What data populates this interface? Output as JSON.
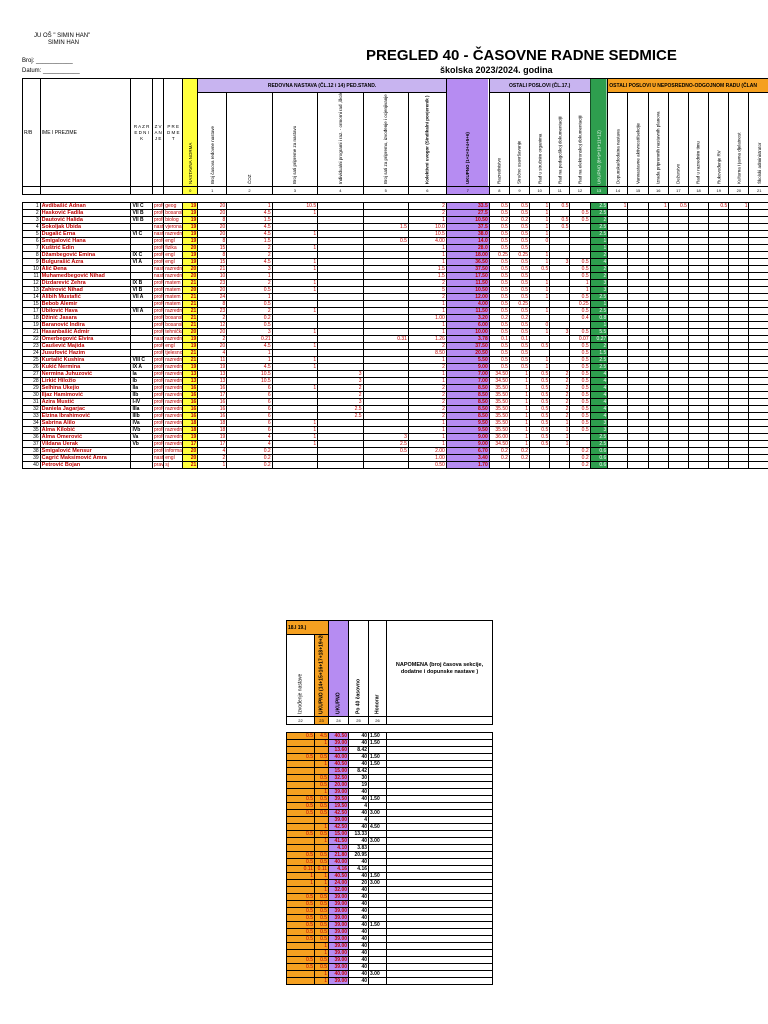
{
  "header": {
    "school_line1": "JU OŠ \" SIMIN HAN\"",
    "school_line2": "SIMIN HAN",
    "broj_label": "Broj: ___________",
    "datum_label": "Datum: ___________",
    "title": "PREGLED 40 - ČASOVNE RADNE SEDMICE",
    "subtitle": "školska 2023/2024. godina"
  },
  "table": {
    "h_rb": "R/B",
    "h_name": "IME I PREZIME",
    "h_razred": "R A Z R E D N I K",
    "h_zvanje": "Z V A N J E",
    "h_predmet": "P R E D M E T",
    "h_norma": "NASTAVNA NORMA",
    "h_redovna": "REDOVNA NASTAVA (ČL.12 i 14) PED.STAND.",
    "h_ostali": "OSTALI POSLOVI (ČL.17.)",
    "h_ostali_neposr": "OSTALI POSLOVI U NEPOSREDNO-ODGOJNOM RADU (ČLAN",
    "h_c1": "Broj časova redovne nastave",
    "h_c2": "ČOZ",
    "h_c3": "Broj sati pripreme za nastavu",
    "h_c4": "Individualni programi i raz. - ormorni rad ,škole",
    "h_c5": "Broj sati za pripremu, izvođenje i ocjenjivanje praktičnih radova",
    "h_c6": "Kolektivni uvogor (Sindikalni povjerenik )",
    "h_c7": "UKUPNO (1+2+3+4+5+6)",
    "h_c8": "Razrednistvo",
    "h_c9": "Stručno usavršavanje",
    "h_c10": "Rad u stručnim organima",
    "h_c11": "Rad na pedagoškoj dokumentaciji",
    "h_c12": "Rad na elektronskoj dokumentaciji",
    "h_c13": "UKUPNO (8+9+10+11+12)",
    "h_c14": "Dopunska/dodatna nastava",
    "h_c15": "Vannastavne aktivnosti/sekcije",
    "h_c16": "Izrada pripremnih nastavnih planova",
    "h_c17": "Dežurstvo",
    "h_c18": "Rad u razrednim timu",
    "h_c19": "Rukovođenje RV",
    "h_c20": "Kulturna i javna djelatnost",
    "h_c21": "Školski administrator",
    "colnums": [
      "0",
      "1",
      "2",
      "3",
      "4",
      "5",
      "6",
      "7",
      "8",
      "9",
      "10",
      "11",
      "12",
      "13",
      "14",
      "15",
      "16",
      "17",
      "18",
      "19",
      "20",
      "21"
    ],
    "rows": [
      {
        "rb": "1",
        "name": "Avdibašić Adnan",
        "raz": "VII C",
        "zv": "profe",
        "pr": "geog",
        "norm": "19",
        "c1": "20",
        "c2": "1",
        "c3": "10.5",
        "c6": "2",
        "c7": "33.5",
        "c8": "0.5",
        "c9": "0.5",
        "c10": "1",
        "c11": "0.5",
        "c13": "2.5",
        "c14": "1",
        "c16": "1",
        "c17": "0.5",
        "c19": "0.5",
        "c20": "1"
      },
      {
        "rb": "2",
        "name": "Hasković Fadila",
        "raz": "VII B",
        "zv": "profe",
        "pr": "bosanski",
        "norm": "19",
        "c1": "20",
        "c2": "4.5",
        "c3": "1",
        "c6": "2",
        "c7": "27.5",
        "c8": "0.5",
        "c9": "0.5",
        "c10": "1",
        "c12": "0.5",
        "c13": "2.5"
      },
      {
        "rb": "3",
        "name": "Dautović Halida",
        "raz": "VII B",
        "zv": "profe",
        "pr": "biolog",
        "norm": "19",
        "c1": "8",
        "c2": "1.5",
        "c6": "1",
        "c7": "10.50",
        "c8": "0.2",
        "c9": "0.2",
        "c10": "1",
        "c11": "0.5",
        "c12": "0.5",
        "c13": "2"
      },
      {
        "rb": "4",
        "name": "Sokoljak Ubida",
        "zv": "nasta",
        "pr": "vjerona",
        "norm": "19",
        "c1": "20",
        "c2": "4.5",
        "c5": "1.5",
        "c6": "10.0",
        "c7": "37.5",
        "c8": "0.5",
        "c9": "0.5",
        "c10": "1",
        "c11": "0.5",
        "c13": "2.5"
      },
      {
        "rb": "5",
        "name": "Dugalić Erna",
        "raz": "VI C",
        "zv": "nasta",
        "pr": "razredna",
        "norm": "19",
        "c1": "20",
        "c2": "4.5",
        "c3": "1",
        "c6": "10.5",
        "c7": "38.0",
        "c8": "0.5",
        "c9": "0.5",
        "c10": "1",
        "c13": "2.5"
      },
      {
        "rb": "6",
        "name": "Šmigalović Hana",
        "zv": "profe",
        "pr": "engl",
        "norm": "19",
        "c1": "8",
        "c2": "1.5",
        "c5": "0.5",
        "c6": "4.00",
        "c7": "14.0",
        "c8": "0.5",
        "c9": "0.5",
        "c10": "0",
        "c13": "1"
      },
      {
        "rb": "7",
        "name": "Kuštrić Edin",
        "zv": "profe",
        "pr": "fizika",
        "norm": "20",
        "c1": "15",
        "c2": "2",
        "c3": "1",
        "c6": "1",
        "c7": "28.0",
        "c8": "0.5",
        "c9": "0.5",
        "c13": "1"
      },
      {
        "rb": "8",
        "name": "Džambegović Emina",
        "raz": "IX C",
        "zv": "profe",
        "pr": "engl",
        "norm": "19",
        "c1": "8",
        "c2": "2",
        "c6": "1",
        "c7": "18.00",
        "c8": "0.25",
        "c9": "0.25",
        "c10": "1",
        "c13": "2"
      },
      {
        "rb": "9",
        "name": "Bulgurašić Azra",
        "raz": "VI A",
        "zv": "profe",
        "pr": "engl",
        "norm": "19",
        "c1": "15",
        "c2": "4.5",
        "c3": "1",
        "c6": "1",
        "c7": "36.50",
        "c8": "0.5",
        "c9": "0.5",
        "c10": "1",
        "c11": "3",
        "c12": "0.5",
        "c13": "4"
      },
      {
        "rb": "10",
        "name": "Alić Đena",
        "zv": "nasta",
        "pr": "razredna",
        "norm": "20",
        "c1": "21",
        "c2": "3",
        "c3": "1",
        "c6": "1.5",
        "c7": "37.50",
        "c8": "0.5",
        "c9": "0.5",
        "c10": "0.5",
        "c12": "0.5",
        "c13": "2"
      },
      {
        "rb": "11",
        "name": "Muhamedbegović Nihad",
        "zv": "nasta",
        "pr": "razredna",
        "norm": "20",
        "c1": "10",
        "c2": "1",
        "c6": "1.5",
        "c7": "17.50",
        "c8": "0.5",
        "c9": "0.5",
        "c12": "0.5",
        "c13": "2"
      },
      {
        "rb": "12",
        "name": "Dizdarević Zehra",
        "raz": "IX B",
        "zv": "profe",
        "pr": "matem",
        "norm": "21",
        "c1": "23",
        "c2": "2",
        "c3": "1",
        "c6": "2",
        "c7": "11.50",
        "c8": "0.5",
        "c9": "0.5",
        "c10": "1",
        "c12": "1",
        "c13": "3"
      },
      {
        "rb": "13",
        "name": "Zahirović Nihad",
        "raz": "VI B",
        "zv": "profe",
        "pr": "matem",
        "norm": "20",
        "c1": "20",
        "c2": "0.5",
        "c3": "1",
        "c6": "5",
        "c7": "10.50",
        "c8": "0.5",
        "c9": "0.5",
        "c10": "1",
        "c12": "1",
        "c13": "3"
      },
      {
        "rb": "14",
        "name": "Alibih Mustafić",
        "raz": "VII A",
        "zv": "profe",
        "pr": "matem",
        "norm": "21",
        "c1": "24",
        "c2": "1",
        "c6": "2",
        "c7": "12.00",
        "c8": "0.5",
        "c9": "0.5",
        "c10": "1",
        "c12": "0.5",
        "c13": "2.5"
      },
      {
        "rb": "15",
        "name": "Bebob Alemir",
        "zv": "profe",
        "pr": "matem",
        "norm": "21",
        "c1": "8",
        "c2": "0.5",
        "c6": "1",
        "c7": "4.00",
        "c8": "0.5",
        "c9": "0.25",
        "c12": "0.25",
        "c13": "1"
      },
      {
        "rb": "17",
        "name": "Ubilović Hava",
        "raz": "VII A",
        "zv": "profe",
        "pr": "razredna",
        "norm": "21",
        "c1": "23",
        "c2": "2",
        "c3": "1",
        "c6": "1",
        "c7": "11.50",
        "c8": "0.5",
        "c9": "0.5",
        "c10": "1",
        "c12": "0.5",
        "c13": "2.5"
      },
      {
        "rb": "18",
        "name": "Džinić Jasara",
        "zv": "profe",
        "pr": "bosanski",
        "norm": "21",
        "c1": "2",
        "c2": "0.2",
        "c6": "1.00",
        "c7": "3.20",
        "c8": "0.2",
        "c9": "0.2",
        "c12": "0.4",
        "c13": "0.8"
      },
      {
        "rb": "19",
        "name": "Baranović Indira",
        "zv": "profe",
        "pr": "bosanski",
        "norm": "21",
        "c1": "12",
        "c2": "0.5",
        "c6": "1",
        "c7": "6.00",
        "c8": "0.5",
        "c9": "0.5",
        "c10": "0",
        "c13": "1"
      },
      {
        "rb": "21",
        "name": "Hasanbašić Admir",
        "zv": "profe",
        "pr": "tehnička",
        "norm": "20",
        "c1": "20",
        "c2": "3",
        "c3": "1",
        "c6": "1",
        "c7": "10.00",
        "c8": "0.5",
        "c9": "0.5",
        "c10": "1",
        "c11": "3",
        "c12": "0.5",
        "c13": "5.5"
      },
      {
        "rb": "22",
        "name": "Omerbegović Elvira",
        "zv": "nasta",
        "pr": "razredna",
        "norm": "19",
        "c1": "2",
        "c2": "0.21",
        "c5": "0.31",
        "c6": "1.26",
        "c7": "3.78",
        "c8": "0.1",
        "c9": "0.1",
        "c12": "0.07",
        "c13": "0.27"
      },
      {
        "rb": "23",
        "name": "Čaušević Majida",
        "zv": "profe",
        "pr": "engl",
        "norm": "19",
        "c1": "20",
        "c2": "4.5",
        "c3": "1",
        "c6": "2",
        "c7": "37.50",
        "c8": "0.5",
        "c9": "0.5",
        "c10": "0.5",
        "c12": "0.5",
        "c13": "2"
      },
      {
        "rb": "24",
        "name": "Jusufović Hazim",
        "zv": "profe",
        "pr": "tjelesno",
        "norm": "21",
        "c1": "4",
        "c2": "1",
        "c6": "8.50",
        "c7": "20.50",
        "c8": "0.5",
        "c9": "0.5",
        "c12": "0.5",
        "c13": "1.5"
      },
      {
        "rb": "25",
        "name": "Kurtalić Kushira",
        "raz": "VIII C",
        "zv": "profe",
        "pr": "razredna",
        "norm": "21",
        "c1": "11",
        "c2": "1",
        "c3": "1",
        "c6": "1",
        "c7": "5.50",
        "c8": "0.5",
        "c9": "0.5",
        "c10": "1",
        "c12": "0.5",
        "c13": "2.5"
      },
      {
        "rb": "26",
        "name": "Kukić Nermina",
        "raz": "IX A",
        "zv": "profe",
        "pr": "razredna",
        "norm": "19",
        "c1": "19",
        "c2": "4.5",
        "c3": "1",
        "c6": "2",
        "c7": "9.00",
        "c8": "0.5",
        "c9": "0.5",
        "c10": "1",
        "c12": "0.5",
        "c13": "2.5"
      },
      {
        "rb": "27",
        "name": "Nermina Juhuzović",
        "raz": "Ia",
        "zv": "profe",
        "pr": "razredna",
        "norm": "13",
        "c1": "13",
        "c2": "10.5",
        "c4": "3",
        "c6": "1",
        "c7": "7.00",
        "c8": "34.50",
        "c9": "1",
        "c10": "0.5",
        "c11": "2",
        "c12": "0.5",
        "c13": "4"
      },
      {
        "rb": "28",
        "name": "Lirkić Hiložio",
        "raz": "Ib",
        "zv": "profe",
        "pr": "razredna",
        "norm": "13",
        "c1": "13",
        "c2": "10.5",
        "c4": "3",
        "c6": "1",
        "c7": "7.00",
        "c8": "34.50",
        "c9": "1",
        "c10": "0.5",
        "c11": "2",
        "c12": "0.5",
        "c13": "4"
      },
      {
        "rb": "29",
        "name": "Selhina Ukejio",
        "raz": "IIa",
        "zv": "profe",
        "pr": "razredna",
        "norm": "16",
        "c1": "16",
        "c2": "6",
        "c3": "1",
        "c4": "2",
        "c6": "2",
        "c7": "8.50",
        "c8": "35.50",
        "c9": "1",
        "c10": "0.5",
        "c11": "2",
        "c12": "0.5",
        "c13": "4"
      },
      {
        "rb": "30",
        "name": "Iljaz Hamimović",
        "raz": "IIb",
        "zv": "profe",
        "pr": "razredna",
        "norm": "16",
        "c1": "17",
        "c2": "6",
        "c4": "2",
        "c6": "2",
        "c7": "8.50",
        "c8": "35.50",
        "c9": "1",
        "c10": "0.5",
        "c11": "2",
        "c12": "0.5",
        "c13": "4"
      },
      {
        "rb": "31",
        "name": "Azira Mustić",
        "raz": "I-IV",
        "zv": "profe",
        "pr": "razredna",
        "norm": "16",
        "c1": "16",
        "c2": "6",
        "c4": "3",
        "c6": "2",
        "c7": "8.50",
        "c8": "35.50",
        "c9": "1",
        "c10": "0.5",
        "c11": "2",
        "c12": "0.5",
        "c13": "4"
      },
      {
        "rb": "32",
        "name": "Daniela Jagarjac",
        "raz": "IIIa",
        "zv": "profe",
        "pr": "razredna",
        "norm": "16",
        "c1": "16",
        "c2": "6",
        "c4": "2.5",
        "c6": "2",
        "c7": "8.50",
        "c8": "35.50",
        "c9": "1",
        "c10": "0.5",
        "c11": "2",
        "c12": "0.5",
        "c13": "4"
      },
      {
        "rb": "33",
        "name": "Elzina Ibrahimović",
        "raz": "IIIb",
        "zv": "profe",
        "pr": "razredna",
        "norm": "16",
        "c1": "16",
        "c2": "6",
        "c4": "2.5",
        "c6": "2",
        "c7": "8.50",
        "c8": "35.50",
        "c9": "1",
        "c10": "0.5",
        "c11": "2",
        "c12": "0.5",
        "c13": "4"
      },
      {
        "rb": "34",
        "name": "Sabrina Alilo",
        "raz": "IVa",
        "zv": "profe",
        "pr": "razredna",
        "norm": "18",
        "c1": "18",
        "c2": "6",
        "c3": "1",
        "c6": "1",
        "c7": "9.50",
        "c8": "35.50",
        "c9": "1",
        "c10": "0.5",
        "c11": "1",
        "c12": "0.5",
        "c13": "3"
      },
      {
        "rb": "35",
        "name": "Alma Kilobić",
        "raz": "IVb",
        "zv": "profe",
        "pr": "razredna",
        "norm": "18",
        "c1": "18",
        "c2": "6",
        "c3": "1",
        "c6": "1",
        "c7": "9.50",
        "c8": "35.50",
        "c9": "1",
        "c10": "0.5",
        "c11": "1",
        "c12": "0.5",
        "c13": "3"
      },
      {
        "rb": "36",
        "name": "Alma Omerović",
        "raz": "Va",
        "zv": "profe",
        "pr": "razredna",
        "norm": "19",
        "c1": "19",
        "c2": "4",
        "c3": "1",
        "c5": "3",
        "c6": "1",
        "c7": "9.00",
        "c8": "36.00",
        "c9": "1",
        "c10": "0.5",
        "c11": "1",
        "c13": "2.5"
      },
      {
        "rb": "37",
        "name": "Vildana Uerak",
        "raz": "Vb",
        "zv": "profe",
        "pr": "razredna",
        "norm": "17",
        "c1": "17",
        "c2": "4",
        "c3": "1",
        "c5": "2.5",
        "c6": "1",
        "c7": "9.00",
        "c8": "34.50",
        "c9": "1",
        "c10": "0.5",
        "c11": "1",
        "c13": "2.5"
      },
      {
        "rb": "38",
        "name": "Šmigalović Mensur",
        "zv": "profe",
        "pr": "informat",
        "norm": "20",
        "c1": "4",
        "c2": "0.2",
        "c5": "0.5",
        "c6": "2.00",
        "c7": "6.70",
        "c8": "0.2",
        "c9": "0.2",
        "c12": "0.2",
        "c13": "0.6"
      },
      {
        "rb": "39",
        "name": "Čagrić Maksimović Amra",
        "zv": "nasta",
        "pr": "engl",
        "norm": "20",
        "c1": "2",
        "c2": "0.2",
        "c6": "1.00",
        "c7": "3.40",
        "c8": "0.2",
        "c9": "0.2",
        "c12": "0.2",
        "c13": "0.6"
      },
      {
        "rb": "40",
        "name": "Petrović Bojan",
        "zv": "prav.",
        "pr": "sj",
        "norm": "21",
        "c1": "1",
        "c2": "0.2",
        "c6": "0.50",
        "c7": "1.70",
        "c12": "0.2",
        "c13": "0.6"
      }
    ]
  },
  "second": {
    "h_1819": "18.I 19.)",
    "h_c22": "Izvođenje nastave",
    "h_c23": "UKUPNO (14+15+16+17+18+19+20+21+22)",
    "h_c24": "UKUPNO",
    "h_c25": "Po 40 časovno",
    "h_c26": "Honorar",
    "h_napomena": "NAPOMENA (broj časova sekcije, dodatne i dopunske nastave )",
    "colnums": [
      "22",
      "23",
      "24",
      "25",
      "26"
    ],
    "rows": [
      {
        "a": "0.5",
        "b": "4.5",
        "c": "40.50",
        "d": "40",
        "e": "1.50"
      },
      {
        "a": "",
        "b": "1",
        "c": "39.00",
        "d": "40",
        "e": "1.50"
      },
      {
        "a": "",
        "b": "",
        "c": "13.60",
        "d": "8.42",
        "e": ""
      },
      {
        "a": "0.5",
        "b": "0.5",
        "c": "40.00",
        "d": "40",
        "e": "1.50"
      },
      {
        "a": "",
        "b": "1",
        "c": "40.50",
        "d": "40",
        "e": "1.50"
      },
      {
        "a": "",
        "b": "",
        "c": "15.00",
        "d": "8.42",
        "e": ""
      },
      {
        "a": "",
        "b": "0.5",
        "c": "32.50",
        "d": "30",
        "e": ""
      },
      {
        "a": "",
        "b": "0.5",
        "c": "20.00",
        "d": "19",
        "e": ""
      },
      {
        "a": "",
        "b": "1",
        "c": "39.00",
        "d": "40",
        "e": ""
      },
      {
        "a": "0.5",
        "b": "0.5",
        "c": "39.50",
        "d": "40",
        "e": "1.50"
      },
      {
        "a": "0.5",
        "b": "0.5",
        "c": "19.50",
        "d": "4",
        "e": ""
      },
      {
        "a": "0.5",
        "b": "0.5",
        "c": "42.50",
        "d": "40",
        "e": "3.00"
      },
      {
        "a": "",
        "b": "",
        "c": "39.00",
        "d": "4",
        "e": ""
      },
      {
        "a": "",
        "b": "1",
        "c": "42.50",
        "d": "40",
        "e": "4.50"
      },
      {
        "a": "0.5",
        "b": "0.5",
        "c": "15.00",
        "d": "13.33",
        "e": ""
      },
      {
        "a": "",
        "b": "1",
        "c": "41.50",
        "d": "40",
        "e": "3.00"
      },
      {
        "a": "",
        "b": "",
        "c": "4.10",
        "d": "3.83",
        "e": ""
      },
      {
        "a": "0.5",
        "b": "0.5",
        "c": "21.80",
        "d": "20.95",
        "e": ""
      },
      {
        "a": "0.5",
        "b": "0.5",
        "c": "40.00",
        "d": "40",
        "e": ""
      },
      {
        "a": "0.11",
        "b": "0.11",
        "c": "4.16",
        "d": "4.16",
        "e": ""
      },
      {
        "a": "1",
        "b": "1",
        "c": "40.50",
        "d": "40",
        "e": "1.50"
      },
      {
        "a": "1",
        "b": "1",
        "c": "24.00",
        "d": "20",
        "e": "3.00"
      },
      {
        "a": "",
        "b": "1",
        "c": "32.00",
        "d": "40",
        "e": ""
      },
      {
        "a": "0.5",
        "b": "0.5",
        "c": "39.00",
        "d": "40",
        "e": ""
      },
      {
        "a": "0.5",
        "b": "0.5",
        "c": "39.00",
        "d": "40",
        "e": ""
      },
      {
        "a": "0.5",
        "b": "0.5",
        "c": "39.00",
        "d": "40",
        "e": ""
      },
      {
        "a": "0.5",
        "b": "0.5",
        "c": "39.00",
        "d": "40",
        "e": ""
      },
      {
        "a": "0.5",
        "b": "0.5",
        "c": "39.00",
        "d": "40",
        "e": "1.50"
      },
      {
        "a": "0.5",
        "b": "0.5",
        "c": "39.00",
        "d": "40",
        "e": ""
      },
      {
        "a": "0.5",
        "b": "0.5",
        "c": "39.00",
        "d": "40",
        "e": ""
      },
      {
        "a": "",
        "b": "1",
        "c": "39.00",
        "d": "40",
        "e": ""
      },
      {
        "a": "",
        "b": "1",
        "c": "39.00",
        "d": "40",
        "e": ""
      },
      {
        "a": "0.5",
        "b": "0.5",
        "c": "39.00",
        "d": "40",
        "e": ""
      },
      {
        "a": "0.5",
        "b": "0.5",
        "c": "39.00",
        "d": "40",
        "e": ""
      },
      {
        "a": "",
        "b": "1",
        "c": "40.00",
        "d": "40",
        "e": "3.00"
      },
      {
        "a": "",
        "b": "1",
        "c": "39.00",
        "d": "40",
        "e": ""
      }
    ]
  }
}
